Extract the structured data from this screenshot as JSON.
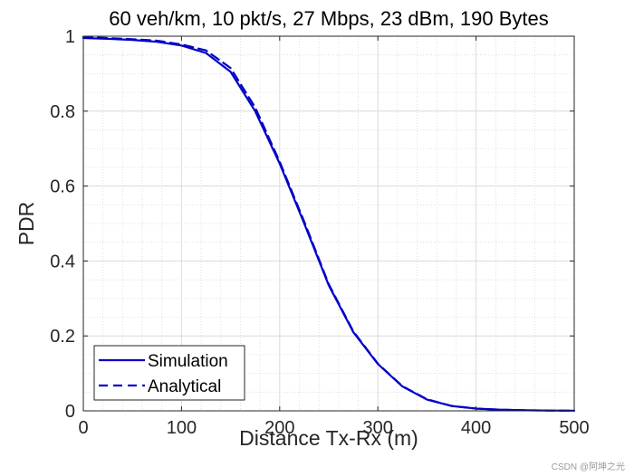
{
  "chart_data": {
    "type": "line",
    "title": "60 veh/km, 10 pkt/s, 27 Mbps, 23 dBm, 190 Bytes",
    "xlabel": "Distance Tx-Rx (m)",
    "ylabel": "PDR",
    "xlim": [
      0,
      500
    ],
    "ylim": [
      0,
      1
    ],
    "xticks": [
      "0",
      "100",
      "200",
      "300",
      "400",
      "500"
    ],
    "yticks": [
      "0",
      "0.2",
      "0.4",
      "0.6",
      "0.8",
      "1"
    ],
    "grid": true,
    "minor_grid": true,
    "legend_position": "bottom-left",
    "series": [
      {
        "name": "Simulation",
        "style": "solid",
        "color": "#0000c8",
        "x": [
          0,
          25,
          50,
          75,
          100,
          125,
          150,
          175,
          200,
          225,
          250,
          275,
          300,
          325,
          350,
          375,
          400,
          425,
          450,
          475,
          500
        ],
        "y": [
          0.995,
          0.993,
          0.99,
          0.985,
          0.975,
          0.955,
          0.905,
          0.8,
          0.66,
          0.5,
          0.335,
          0.21,
          0.125,
          0.065,
          0.03,
          0.013,
          0.006,
          0.003,
          0.0015,
          0.0008,
          0.0004
        ]
      },
      {
        "name": "Analytical",
        "style": "dashed",
        "color": "#0000c8",
        "x": [
          0,
          25,
          50,
          75,
          100,
          125,
          150,
          175,
          200,
          225,
          250,
          275,
          300,
          325,
          350,
          375,
          400,
          425,
          450,
          475,
          500
        ],
        "y": [
          0.998,
          0.995,
          0.992,
          0.988,
          0.978,
          0.962,
          0.915,
          0.81,
          0.665,
          0.505,
          0.338,
          0.212,
          0.126,
          0.066,
          0.031,
          0.013,
          0.006,
          0.003,
          0.0015,
          0.0008,
          0.0004
        ]
      }
    ]
  },
  "watermark": "CSDN @阿坤之光"
}
